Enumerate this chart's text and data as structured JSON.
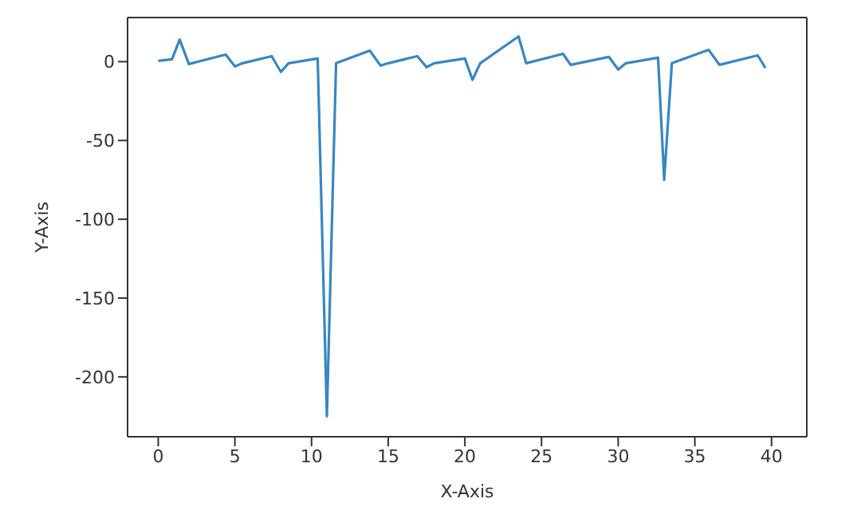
{
  "chart_data": {
    "type": "line",
    "xlabel": "X-Axis",
    "ylabel": "Y-Axis",
    "series": [
      {
        "color": "#3a86c0",
        "x": [
          0,
          0.9,
          1.4,
          2,
          4.4,
          5,
          5.5,
          7.4,
          8,
          8.5,
          10.4,
          11,
          11.6,
          13.8,
          14.5,
          15,
          16.9,
          17.5,
          18,
          20,
          20.5,
          21,
          23.5,
          24,
          26.4,
          26.9,
          27.4,
          29.4,
          30,
          30.5,
          32.6,
          33,
          33.5,
          35.9,
          36.6,
          39.1,
          39.6
        ],
        "values": [
          0.5,
          1.5,
          14,
          -1.5,
          4.5,
          -3,
          -1,
          3.5,
          -6.5,
          -1,
          2,
          -225,
          -1,
          7,
          -2.5,
          -1,
          3.5,
          -3.5,
          -1,
          2,
          -11.5,
          -1,
          16,
          -1,
          5,
          -2,
          -1,
          3,
          -5,
          -1,
          2.5,
          -75,
          -1,
          7.5,
          -2,
          4,
          -4
        ]
      }
    ],
    "xlim": [
      -2,
      42.3
    ],
    "ylim": [
      -238,
      28
    ],
    "xticks": [
      0,
      5,
      10,
      15,
      20,
      25,
      30,
      35,
      40
    ],
    "yticks": [
      -200,
      -150,
      -100,
      -50,
      0
    ]
  }
}
